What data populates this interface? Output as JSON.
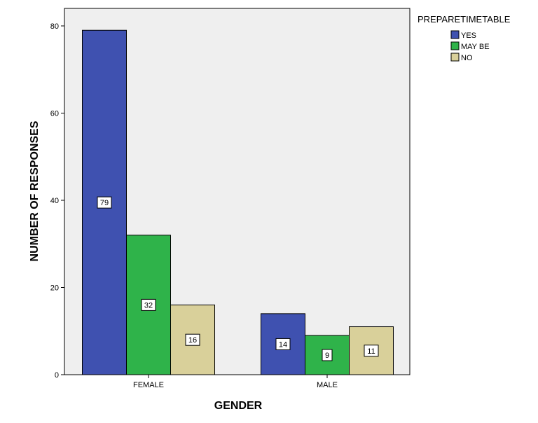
{
  "chart_data": {
    "type": "bar",
    "categories": [
      "FEMALE",
      "MALE"
    ],
    "series": [
      {
        "name": "YES",
        "values": [
          79,
          14
        ],
        "color": "#3f51b0"
      },
      {
        "name": "MAY BE",
        "values": [
          32,
          9
        ],
        "color": "#2fb34a"
      },
      {
        "name": "NO",
        "values": [
          16,
          11
        ],
        "color": "#d9d09a"
      }
    ],
    "xlabel": "GENDER",
    "ylabel": "NUMBER OF RESPONSES",
    "ylim": [
      0,
      85
    ],
    "yticks": [
      0,
      20,
      40,
      60,
      80
    ],
    "legend": {
      "title": "PREPARETIMETABLE",
      "position": "top-right outside"
    },
    "data_labels": true,
    "grid": false,
    "plot_background": "#efefef"
  }
}
